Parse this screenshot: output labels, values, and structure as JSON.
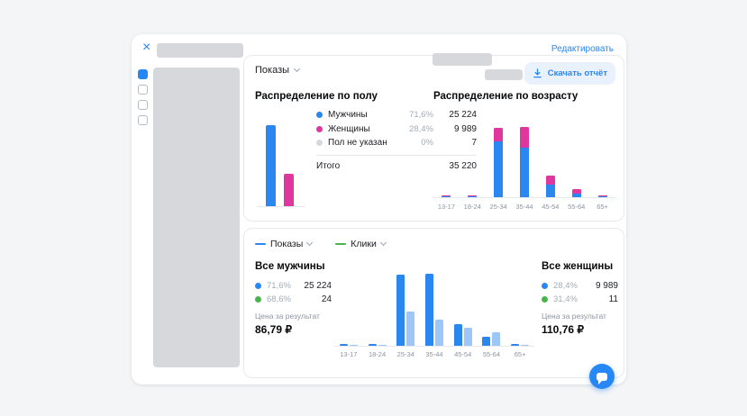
{
  "colors": {
    "blue": "#2b87f0",
    "pink": "#e0379f",
    "gray": "#d3d9de",
    "green": "#4bb34b",
    "light_blue": "#9cc7f8",
    "accent": "#2787f5"
  },
  "modal": {
    "edit_label": "Редактировать"
  },
  "report": {
    "metric_selector": "Показы",
    "download_label": "Скачать отчёт"
  },
  "gender": {
    "title": "Распределение по полу",
    "rows": [
      {
        "label": "Мужчины",
        "percent": "71,6%",
        "value": "25 224",
        "color": "#2b87f0"
      },
      {
        "label": "Женщины",
        "percent": "28,4%",
        "value": "9 989",
        "color": "#e0379f"
      },
      {
        "label": "Пол не указан",
        "percent": "0%",
        "value": "7",
        "color": "#d3d9de"
      }
    ],
    "total_label": "Итого",
    "total_value": "35 220"
  },
  "age": {
    "title": "Распределение по возрасту"
  },
  "compare": {
    "selectors": [
      {
        "label": "Показы",
        "color": "#2b87f0"
      },
      {
        "label": "Клики",
        "color": "#4bb34b"
      }
    ],
    "men": {
      "title": "Все мужчины",
      "rows": [
        {
          "color": "#2b87f0",
          "percent": "71,6%",
          "value": "25 224"
        },
        {
          "color": "#4bb34b",
          "percent": "68,6%",
          "value": "24"
        }
      ],
      "price_label": "Цена за результат",
      "price": "86,79 ₽"
    },
    "women": {
      "title": "Все женщины",
      "rows": [
        {
          "color": "#2b87f0",
          "percent": "28,4%",
          "value": "9 989"
        },
        {
          "color": "#4bb34b",
          "percent": "31,4%",
          "value": "11"
        }
      ],
      "price_label": "Цена за результат",
      "price": "110,76 ₽"
    }
  },
  "chart_data": [
    {
      "type": "bar",
      "title": "Распределение по полу",
      "categories": [
        "Мужчины",
        "Женщины",
        "Пол не указан"
      ],
      "values": [
        25224,
        9989,
        7
      ],
      "colors": [
        "#2b87f0",
        "#e0379f",
        "#d3d9de"
      ],
      "legend_position": "right"
    },
    {
      "type": "bar",
      "stacked": true,
      "title": "Распределение по возрасту",
      "categories": [
        "13-17",
        "18-24",
        "25-34",
        "35-44",
        "45-54",
        "55-64",
        "65+"
      ],
      "series": [
        {
          "name": "Мужчины",
          "color": "#2b87f0",
          "values": [
            60,
            120,
            11400,
            10200,
            2600,
            800,
            44
          ]
        },
        {
          "name": "Женщины",
          "color": "#e0379f",
          "values": [
            30,
            60,
            2900,
            4200,
            1800,
            950,
            49
          ]
        }
      ],
      "note": "values estimated from bar heights; totals match 35 220"
    },
    {
      "type": "bar",
      "title": "Показы и клики по возрасту",
      "categories": [
        "13-17",
        "18-24",
        "25-34",
        "35-44",
        "45-54",
        "55-64",
        "65+"
      ],
      "series": [
        {
          "name": "Показы",
          "color": "#2b87f0",
          "values": [
            90,
            180,
            14300,
            14400,
            4400,
            1750,
            93
          ]
        },
        {
          "name": "Клики",
          "color": "#9cc7f8",
          "values": [
            0,
            0,
            13,
            10,
            7,
            5,
            0
          ]
        }
      ],
      "note": "series normalized independently; clicks total 35 (24 men / 11 women)"
    }
  ]
}
